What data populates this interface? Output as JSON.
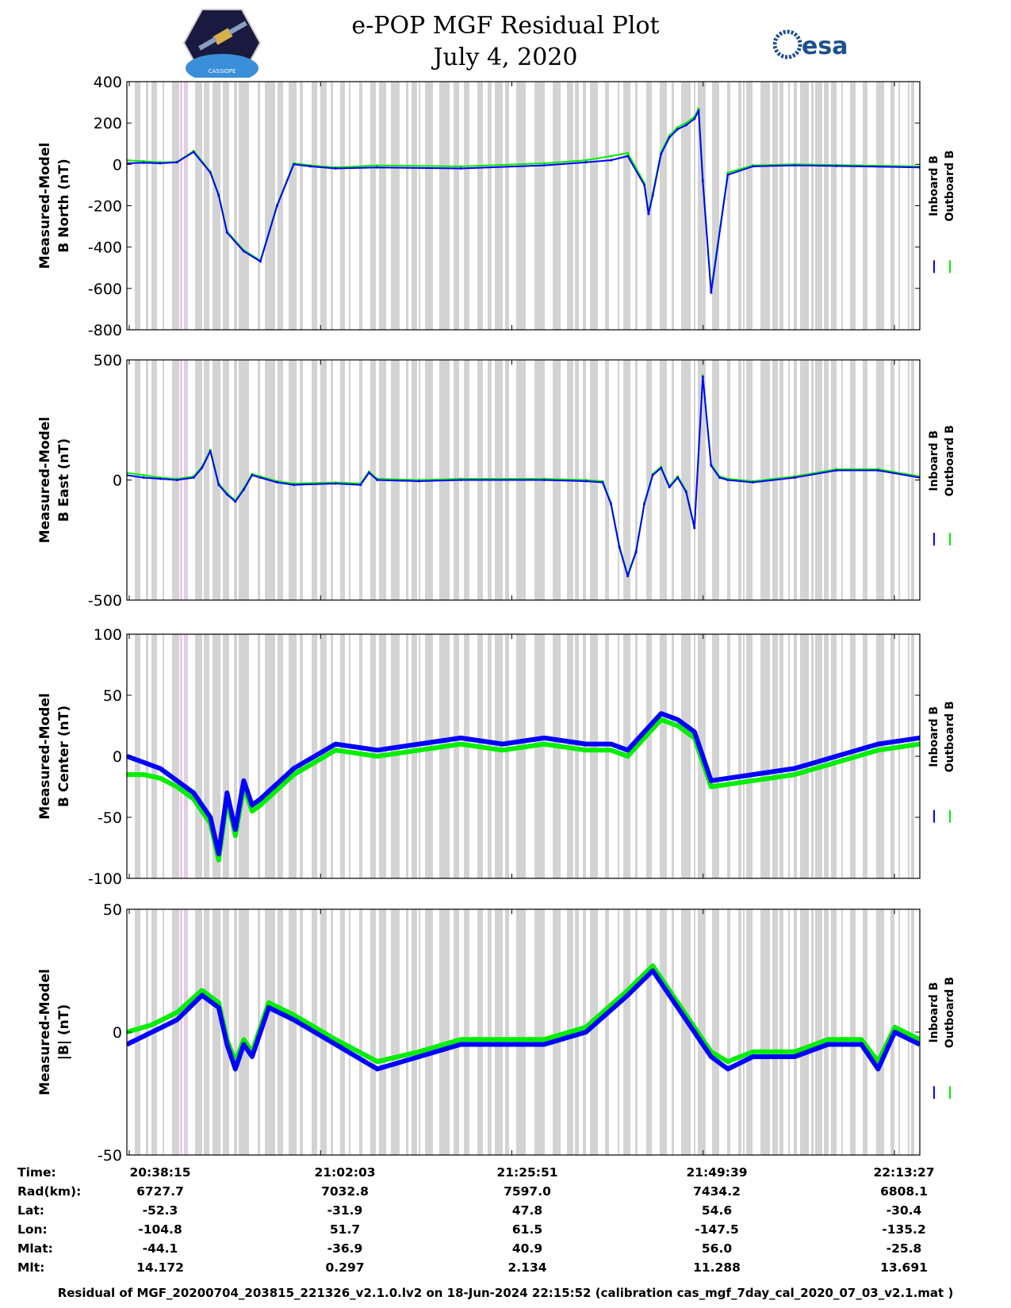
{
  "header": {
    "title_line1": "e-POP MGF Residual Plot",
    "title_line2": "July 4, 2020",
    "logo_left": "CASSIOPE",
    "logo_right": "esa"
  },
  "colors": {
    "inboard": "#0000ff",
    "outboard": "#00ee00",
    "gap_band": "#d3d3d3",
    "pink_band": "#f2c7f2"
  },
  "legend": {
    "inboard": "Inboard B",
    "outboard": "Outboard B"
  },
  "chart_data": [
    {
      "type": "line",
      "ylabel_line1": "Measured-Model",
      "ylabel_line2": "B North (nT)",
      "ylim": [
        -800,
        400
      ],
      "yticks": [
        "400",
        "200",
        "0",
        "-200",
        "-400",
        "-600",
        "-800"
      ],
      "ytick_values": [
        400,
        200,
        0,
        -200,
        -400,
        -600,
        -800
      ],
      "x": [
        0,
        2,
        4,
        6,
        8,
        10,
        11,
        12,
        14,
        16,
        18,
        20,
        22,
        25,
        30,
        40,
        50,
        55,
        58,
        60,
        62,
        62.5,
        63,
        64,
        65,
        66,
        67,
        68,
        68.5,
        69,
        70,
        72,
        75,
        80,
        85,
        95
      ],
      "series": [
        {
          "name": "Inboard B",
          "values": [
            5,
            8,
            5,
            10,
            60,
            -40,
            -150,
            -330,
            -420,
            -470,
            -200,
            0,
            -10,
            -20,
            -15,
            -20,
            -5,
            10,
            20,
            40,
            -100,
            -240,
            -150,
            50,
            130,
            170,
            190,
            220,
            260,
            -80,
            -620,
            -50,
            -10,
            -5,
            -8,
            -15
          ]
        },
        {
          "name": "Outboard B",
          "values": [
            20,
            15,
            10,
            12,
            65,
            -35,
            -145,
            -325,
            -415,
            -465,
            -195,
            5,
            -5,
            -15,
            -5,
            -10,
            5,
            20,
            40,
            55,
            -90,
            -230,
            -140,
            60,
            140,
            180,
            200,
            230,
            270,
            -70,
            -610,
            -40,
            -5,
            0,
            -3,
            -10
          ]
        }
      ]
    },
    {
      "type": "line",
      "ylabel_line1": "Measured-Model",
      "ylabel_line2": "B East (nT)",
      "ylim": [
        -500,
        500
      ],
      "yticks": [
        "500",
        "0",
        "-500"
      ],
      "ytick_values": [
        500,
        0,
        -500
      ],
      "x": [
        0,
        2,
        4,
        6,
        8,
        9,
        10,
        11,
        12,
        13,
        14,
        15,
        16,
        18,
        20,
        25,
        28,
        29,
        30,
        35,
        40,
        50,
        55,
        57,
        58,
        59,
        60,
        61,
        62,
        63,
        64,
        65,
        66,
        67,
        68,
        69,
        70,
        71,
        72,
        75,
        80,
        85,
        90,
        95
      ],
      "series": [
        {
          "name": "Inboard B",
          "values": [
            20,
            10,
            5,
            0,
            10,
            50,
            120,
            -20,
            -60,
            -90,
            -40,
            20,
            10,
            -10,
            -20,
            -15,
            -20,
            30,
            0,
            -5,
            0,
            0,
            -5,
            -10,
            -100,
            -280,
            -400,
            -300,
            -100,
            20,
            50,
            -30,
            10,
            -50,
            -200,
            430,
            60,
            10,
            0,
            -10,
            10,
            40,
            40,
            10
          ]
        },
        {
          "name": "Outboard B",
          "values": [
            30,
            20,
            10,
            5,
            15,
            55,
            125,
            -15,
            -55,
            -85,
            -35,
            25,
            15,
            -5,
            -15,
            -10,
            -15,
            35,
            5,
            0,
            5,
            5,
            0,
            -5,
            -95,
            -275,
            -395,
            -295,
            -95,
            25,
            55,
            -25,
            15,
            -45,
            -195,
            435,
            65,
            15,
            5,
            -5,
            15,
            45,
            45,
            15
          ]
        }
      ]
    },
    {
      "type": "line",
      "ylabel_line1": "Measured-Model",
      "ylabel_line2": "B Center (nT)",
      "ylim": [
        -100,
        100
      ],
      "yticks": [
        "100",
        "50",
        "0",
        "-50",
        "-100"
      ],
      "ytick_values": [
        100,
        50,
        0,
        -50,
        -100
      ],
      "x": [
        0,
        2,
        4,
        6,
        8,
        10,
        11,
        12,
        13,
        14,
        15,
        16,
        20,
        25,
        30,
        35,
        40,
        45,
        50,
        55,
        58,
        60,
        62,
        64,
        66,
        68,
        70,
        75,
        80,
        85,
        90,
        95
      ],
      "series": [
        {
          "name": "Inboard B",
          "values": [
            0,
            -5,
            -10,
            -20,
            -30,
            -50,
            -80,
            -30,
            -60,
            -20,
            -40,
            -35,
            -10,
            10,
            5,
            10,
            15,
            10,
            15,
            10,
            10,
            5,
            20,
            35,
            30,
            20,
            -20,
            -15,
            -10,
            0,
            10,
            15
          ]
        },
        {
          "name": "Outboard B",
          "values": [
            -15,
            -15,
            -18,
            -25,
            -35,
            -55,
            -85,
            -35,
            -65,
            -25,
            -45,
            -40,
            -15,
            5,
            0,
            5,
            10,
            5,
            10,
            5,
            5,
            0,
            15,
            30,
            25,
            15,
            -25,
            -20,
            -15,
            -5,
            5,
            10
          ]
        }
      ]
    },
    {
      "type": "line",
      "ylabel_line1": "Measured-Model",
      "ylabel_line2": "|B| (nT)",
      "ylim": [
        -50,
        50
      ],
      "yticks": [
        "50",
        "0",
        "-50"
      ],
      "ytick_values": [
        50,
        0,
        -50
      ],
      "x": [
        0,
        3,
        6,
        9,
        11,
        12,
        13,
        14,
        15,
        17,
        20,
        25,
        30,
        35,
        40,
        45,
        50,
        55,
        60,
        63,
        66,
        70,
        72,
        75,
        80,
        84,
        88,
        90,
        92,
        95
      ],
      "series": [
        {
          "name": "Inboard B",
          "values": [
            -5,
            0,
            5,
            15,
            10,
            -5,
            -15,
            -5,
            -10,
            10,
            5,
            -5,
            -15,
            -10,
            -5,
            -5,
            -5,
            0,
            15,
            25,
            10,
            -10,
            -15,
            -10,
            -10,
            -5,
            -5,
            -15,
            0,
            -5
          ]
        },
        {
          "name": "Outboard B",
          "values": [
            0,
            3,
            8,
            17,
            12,
            -3,
            -12,
            -3,
            -8,
            12,
            7,
            -3,
            -12,
            -8,
            -3,
            -3,
            -3,
            2,
            17,
            27,
            12,
            -8,
            -12,
            -8,
            -8,
            -3,
            -3,
            -12,
            2,
            -3
          ]
        }
      ]
    }
  ],
  "table": {
    "labels": [
      "Time:",
      "Rad(km):",
      "Lat:",
      "Lon:",
      "Mlat:",
      "Mlt:"
    ],
    "columns": [
      [
        "20:38:15",
        "6727.7",
        "-52.3",
        "-104.8",
        "-44.1",
        "14.172"
      ],
      [
        "21:02:03",
        "7032.8",
        "-31.9",
        "51.7",
        "-36.9",
        "0.297"
      ],
      [
        "21:25:51",
        "7597.0",
        "47.8",
        "61.5",
        "40.9",
        "2.134"
      ],
      [
        "21:49:39",
        "7434.2",
        "54.6",
        "-147.5",
        "56.0",
        "11.288"
      ],
      [
        "22:13:27",
        "6808.1",
        "-30.4",
        "-135.2",
        "-25.8",
        "13.691"
      ]
    ]
  },
  "footer": "Residual of MGF_20200704_203815_221326_v2.1.0.lv2 on 18-Jun-2024 22:15:52 (calibration cas_mgf_7day_cal_2020_07_03_v2.1.mat )"
}
